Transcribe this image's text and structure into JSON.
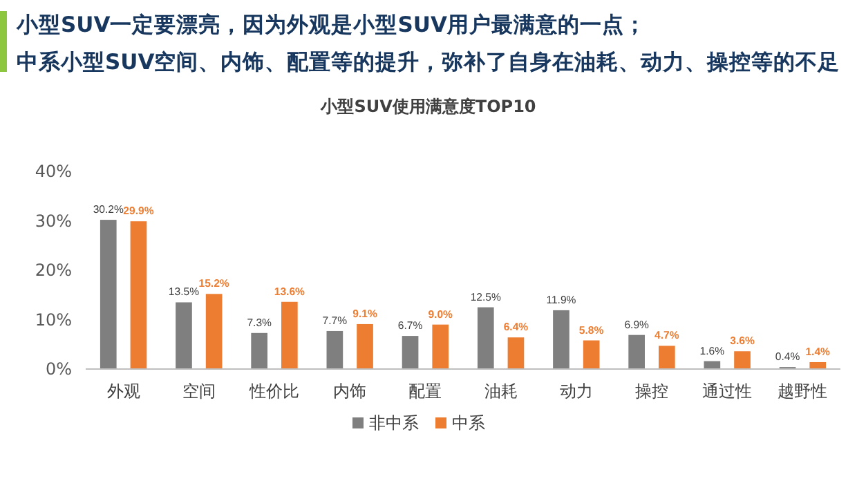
{
  "chart_data": {
    "type": "bar",
    "title": "小型SUV使用满意度TOP10",
    "annotations": [
      "小型SUV一定要漂亮，因为外观是小型SUV用户最满意的一点；",
      "中系小型SUV空间、内饰、配置等的提升，弥补了自身在油耗、动力、操控等的不足"
    ],
    "categories": [
      "外观",
      "空间",
      "性价比",
      "内饰",
      "配置",
      "油耗",
      "动力",
      "操控",
      "通过性",
      "越野性"
    ],
    "series": [
      {
        "name": "非中系",
        "color": "#7f7f7f",
        "values": [
          30.2,
          13.5,
          7.3,
          7.7,
          6.7,
          12.5,
          11.9,
          6.9,
          1.6,
          0.4
        ],
        "value_labels": [
          "30.2%",
          "13.5%",
          "7.3%",
          "7.7%",
          "6.7%",
          "12.5%",
          "11.9%",
          "6.9%",
          "1.6%",
          "0.4%"
        ]
      },
      {
        "name": "中系",
        "color": "#ed7d31",
        "values": [
          29.9,
          15.2,
          13.6,
          9.1,
          9.0,
          6.4,
          5.8,
          4.7,
          3.6,
          1.4
        ],
        "value_labels": [
          "29.9%",
          "15.2%",
          "13.6%",
          "9.1%",
          "9.0%",
          "6.4%",
          "5.8%",
          "4.7%",
          "3.6%",
          "1.4%"
        ]
      }
    ],
    "ylim": [
      0,
      40
    ],
    "yticks": [
      {
        "value": 0,
        "label": "0%"
      },
      {
        "value": 10,
        "label": "10%"
      },
      {
        "value": 20,
        "label": "20%"
      },
      {
        "value": 30,
        "label": "30%"
      },
      {
        "value": 40,
        "label": "40%"
      }
    ],
    "grid": false,
    "legend": "bottom"
  }
}
